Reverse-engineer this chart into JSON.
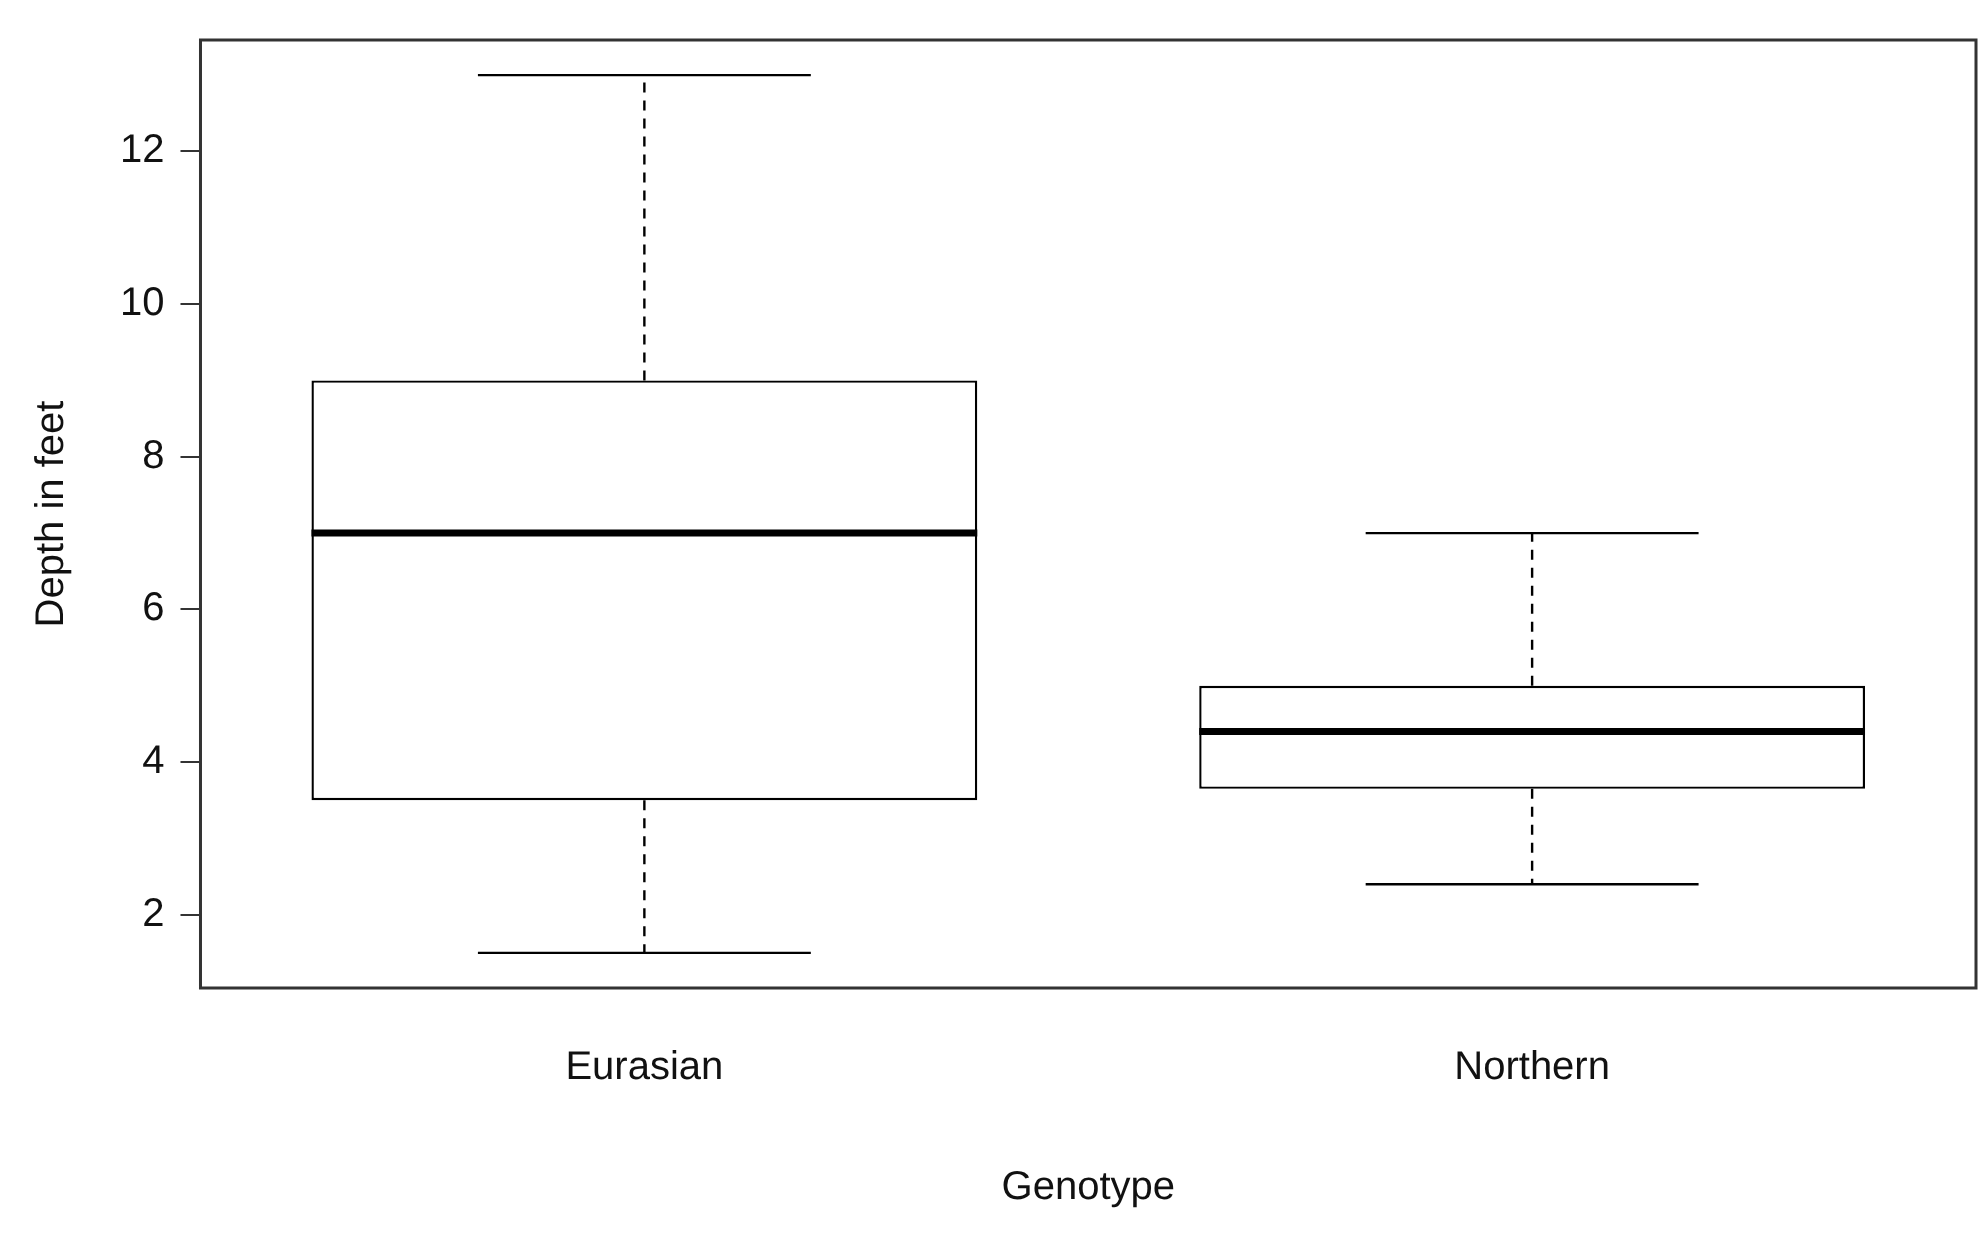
{
  "chart_data": {
    "type": "box",
    "xlabel": "Genotype",
    "ylabel": "Depth in feet",
    "categories": [
      "Eurasian",
      "Northern"
    ],
    "boxes": [
      {
        "low": 1.5,
        "q1": 3.5,
        "median": 7,
        "q3": 9,
        "high": 13
      },
      {
        "low": 2.4,
        "q1": 3.65,
        "median": 4.4,
        "q3": 5,
        "high": 7
      }
    ],
    "ylim": [
      1.04,
      13.46
    ],
    "yticks": [
      2,
      4,
      6,
      8,
      10,
      12
    ],
    "grid": false,
    "legend": false
  }
}
